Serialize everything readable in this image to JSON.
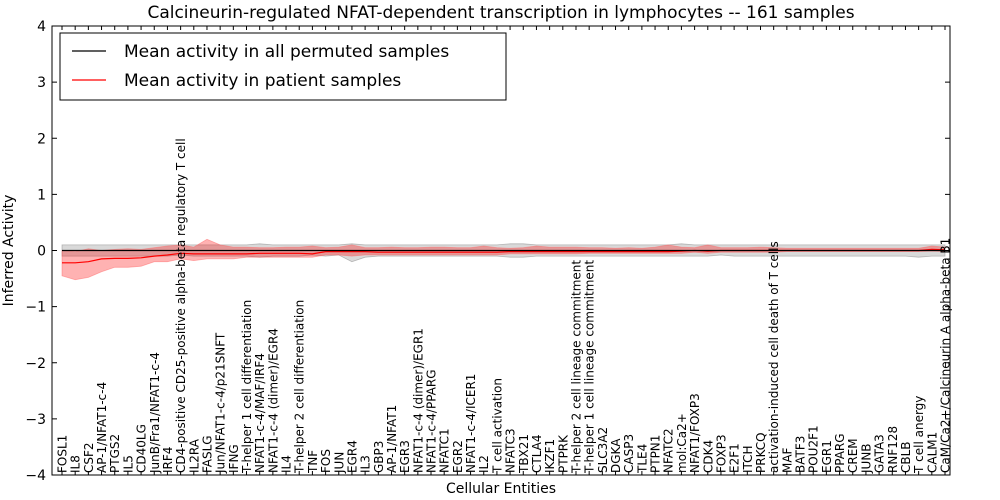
{
  "chart_data": {
    "type": "line",
    "title": "Calcineurin-regulated NFAT-dependent transcription in lymphocytes -- 161 samples",
    "xlabel": "Cellular Entities",
    "ylabel": "Inferred Activity",
    "ylim": [
      -4,
      4
    ],
    "yticks": [
      -4,
      -3,
      -2,
      -1,
      0,
      1,
      2,
      3,
      4
    ],
    "grid": false,
    "legend_position": "top-left",
    "reference_line": {
      "y": 0,
      "style": "dotted"
    },
    "categories": [
      "FOSL1",
      "IL8",
      "CSF2",
      "AP-1/NFAT1-c-4",
      "PTGS2",
      "IL5",
      "CD40LG",
      "JunB/Fra1/NFAT1-c-4",
      "IRF4",
      "CD4-positive CD25-positive alpha-beta regulatory T cell",
      "IL2RA",
      "FASLG",
      "Jun/NFAT1-c-4/p21SNFT",
      "IFNG",
      "T-helper 1 cell differentiation",
      "NFAT1-c-4/MAF/IRF4",
      "NFAT1-c-4 (dimer)/EGR4",
      "IL4",
      "T-helper 2 cell differentiation",
      "TNF",
      "FOS",
      "JUN",
      "EGR4",
      "IL3",
      "GBP3",
      "AP-1/NFAT1",
      "EGR3",
      "NFAT1-c-4 (dimer)/EGR1",
      "NFAT1-c-4/PPARG",
      "NFATC1",
      "EGR2",
      "NFAT1-c-4/ICER1",
      "IL2",
      "T cell activation",
      "NFATC3",
      "TBX21",
      "CTLA4",
      "IKZF1",
      "PTPRK",
      "T-helper 2 cell lineage commitment",
      "T-helper 1 cell lineage commitment",
      "SLC3A2",
      "DGKA",
      "CASP3",
      "TLE4",
      "PTPN1",
      "NFATC2",
      "mol:Ca2+",
      "NFAT1/FOXP3",
      "CDK4",
      "FOXP3",
      "E2F1",
      "ITCH",
      "PRKCQ",
      "activation-induced cell death of T cells",
      "MAF",
      "BATF3",
      "POU2F1",
      "EGR1",
      "PPARG",
      "CREM",
      "JUNB",
      "GATA3",
      "RNF128",
      "CBLB",
      "T cell anergy",
      "CALM1",
      "CaM/Ca2+/Calcineurin A alpha-beta B1"
    ],
    "series": [
      {
        "name": "Mean activity in all permuted samples",
        "color": "#000000",
        "values": [
          0,
          0,
          0,
          0,
          0,
          0,
          0,
          0,
          0,
          0,
          0,
          0,
          0,
          0,
          0,
          0,
          0,
          0,
          0,
          0,
          0,
          0,
          0,
          0,
          0,
          0,
          0,
          0,
          0,
          0,
          0,
          0,
          0,
          0,
          0,
          0,
          0,
          0,
          0,
          0,
          0,
          0,
          0,
          0,
          0,
          0,
          0,
          0,
          0,
          0,
          0,
          0,
          0,
          0,
          0,
          0,
          0,
          0,
          0,
          0,
          0,
          0,
          0,
          0,
          0,
          0,
          0,
          0
        ],
        "band_lower": [
          -0.1,
          -0.1,
          -0.1,
          -0.1,
          -0.1,
          -0.1,
          -0.1,
          -0.1,
          -0.1,
          -0.08,
          -0.1,
          -0.1,
          -0.1,
          -0.1,
          -0.1,
          -0.12,
          -0.1,
          -0.1,
          -0.1,
          -0.08,
          -0.1,
          -0.08,
          -0.2,
          -0.12,
          -0.1,
          -0.1,
          -0.1,
          -0.1,
          -0.1,
          -0.1,
          -0.1,
          -0.1,
          -0.1,
          -0.1,
          -0.12,
          -0.12,
          -0.1,
          -0.1,
          -0.1,
          -0.1,
          -0.1,
          -0.1,
          -0.1,
          -0.1,
          -0.1,
          -0.1,
          -0.1,
          -0.1,
          -0.1,
          -0.1,
          -0.08,
          -0.1,
          -0.1,
          -0.1,
          -0.1,
          -0.1,
          -0.1,
          -0.1,
          -0.1,
          -0.1,
          -0.1,
          -0.1,
          -0.1,
          -0.1,
          -0.1,
          -0.12,
          -0.1,
          -0.1
        ],
        "band_upper": [
          0.1,
          0.1,
          0.1,
          0.1,
          0.1,
          0.1,
          0.1,
          0.1,
          0.1,
          0.1,
          0.1,
          0.1,
          0.1,
          0.1,
          0.1,
          0.12,
          0.1,
          0.1,
          0.1,
          0.1,
          0.1,
          0.1,
          0.12,
          0.1,
          0.1,
          0.1,
          0.1,
          0.1,
          0.1,
          0.1,
          0.1,
          0.1,
          0.1,
          0.1,
          0.12,
          0.12,
          0.1,
          0.1,
          0.1,
          0.1,
          0.1,
          0.1,
          0.1,
          0.1,
          0.1,
          0.1,
          0.1,
          0.12,
          0.1,
          0.1,
          0.1,
          0.1,
          0.1,
          0.1,
          0.1,
          0.1,
          0.1,
          0.1,
          0.1,
          0.1,
          0.1,
          0.1,
          0.1,
          0.1,
          0.1,
          0.1,
          0.1,
          0.1
        ]
      },
      {
        "name": "Mean activity in patient samples",
        "color": "#ff0000",
        "values": [
          -0.22,
          -0.22,
          -0.2,
          -0.15,
          -0.14,
          -0.14,
          -0.13,
          -0.1,
          -0.08,
          -0.05,
          -0.06,
          -0.06,
          -0.06,
          -0.06,
          -0.06,
          -0.05,
          -0.05,
          -0.05,
          -0.05,
          -0.06,
          -0.02,
          -0.02,
          -0.02,
          -0.02,
          -0.03,
          -0.03,
          -0.03,
          -0.03,
          -0.03,
          -0.03,
          -0.03,
          -0.03,
          -0.03,
          -0.03,
          -0.02,
          -0.02,
          -0.02,
          -0.02,
          -0.02,
          -0.02,
          -0.02,
          -0.02,
          -0.02,
          -0.02,
          -0.02,
          -0.02,
          -0.02,
          -0.01,
          0.0,
          -0.01,
          0.0,
          0.0,
          0.0,
          0.0,
          0.0,
          0.0,
          0.0,
          0.0,
          0.0,
          0.0,
          0.0,
          0.0,
          0.0,
          0.0,
          0.0,
          0.0,
          0.02,
          0.01
        ],
        "band_lower": [
          -0.45,
          -0.52,
          -0.48,
          -0.38,
          -0.3,
          -0.3,
          -0.28,
          -0.2,
          -0.2,
          -0.15,
          -0.18,
          -0.15,
          -0.15,
          -0.15,
          -0.12,
          -0.12,
          -0.12,
          -0.12,
          -0.12,
          -0.12,
          -0.08,
          -0.08,
          -0.1,
          -0.08,
          -0.08,
          -0.08,
          -0.08,
          -0.08,
          -0.08,
          -0.08,
          -0.08,
          -0.08,
          -0.08,
          -0.08,
          -0.06,
          -0.06,
          -0.06,
          -0.06,
          -0.06,
          -0.06,
          -0.05,
          -0.05,
          -0.05,
          -0.05,
          -0.05,
          -0.05,
          -0.05,
          -0.05,
          -0.03,
          -0.05,
          -0.03,
          -0.03,
          -0.03,
          -0.03,
          -0.03,
          -0.02,
          -0.02,
          -0.02,
          -0.02,
          -0.02,
          -0.02,
          -0.02,
          -0.02,
          -0.02,
          -0.02,
          -0.02,
          -0.01,
          -0.02
        ],
        "band_upper": [
          0.0,
          -0.02,
          0.03,
          0.0,
          0.02,
          0.03,
          0.02,
          0.05,
          0.08,
          0.1,
          0.06,
          0.2,
          0.1,
          0.06,
          0.06,
          0.05,
          0.05,
          0.06,
          0.06,
          0.08,
          0.05,
          0.06,
          0.1,
          0.05,
          0.05,
          0.06,
          0.05,
          0.05,
          0.06,
          0.06,
          0.05,
          0.05,
          0.08,
          0.05,
          0.04,
          0.05,
          0.08,
          0.06,
          0.06,
          0.06,
          0.05,
          0.05,
          0.04,
          0.05,
          0.04,
          0.06,
          0.1,
          0.06,
          0.05,
          0.1,
          0.05,
          0.05,
          0.05,
          0.06,
          0.05,
          0.04,
          0.04,
          0.04,
          0.04,
          0.04,
          0.04,
          0.04,
          0.04,
          0.04,
          0.04,
          0.04,
          0.08,
          0.06
        ]
      }
    ]
  }
}
